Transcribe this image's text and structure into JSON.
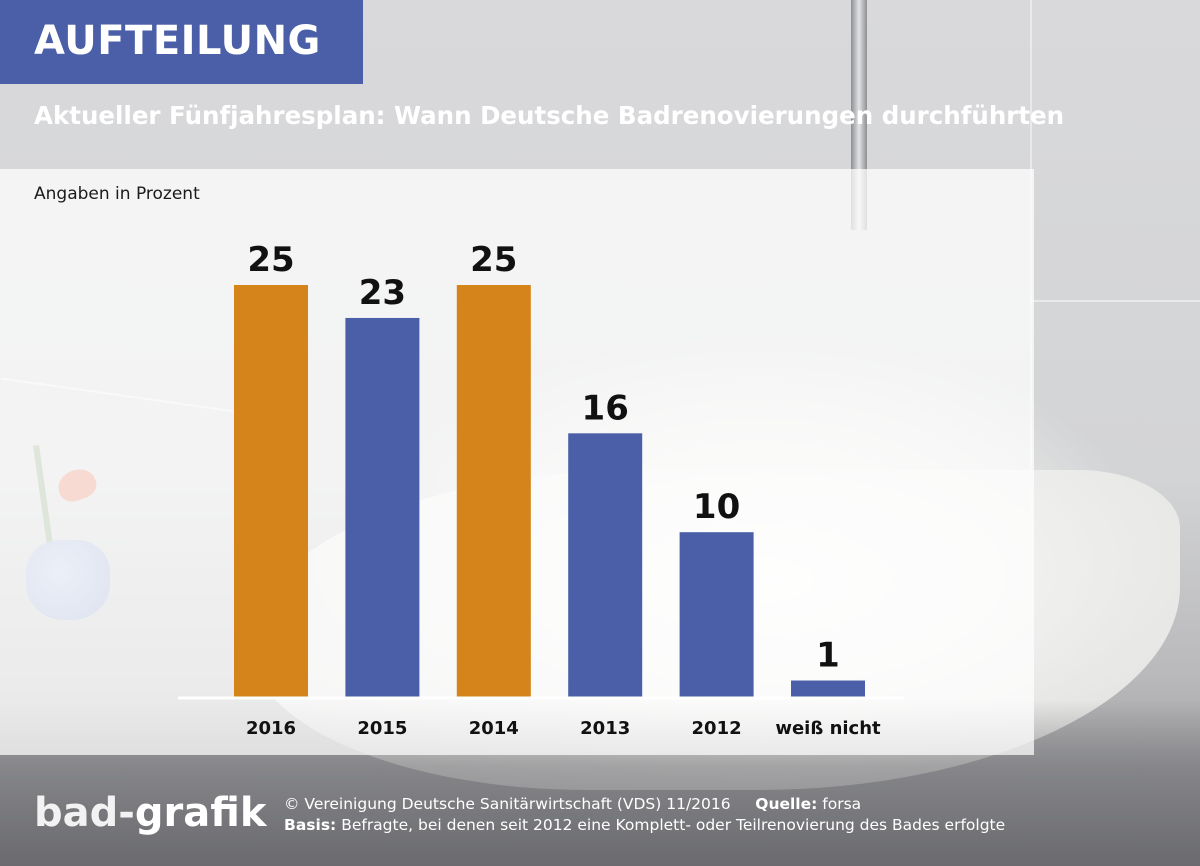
{
  "header": {
    "title": "AUFTEILUNG",
    "subtitle": "Aktueller Fünfjahresplan: Wann Deutsche Badrenovierungen durchführten"
  },
  "colors": {
    "title_bg": "#4a5fa8",
    "highlight_bar": "#d4841a",
    "default_bar": "#4a5fa8"
  },
  "chart_data": {
    "type": "bar",
    "unit_label": "Angaben in Prozent",
    "categories": [
      "2016",
      "2015",
      "2014",
      "2013",
      "2012",
      "weiß nicht"
    ],
    "values": [
      25,
      23,
      25,
      16,
      10,
      1
    ],
    "bar_colors": [
      "#d4841a",
      "#4a5fa8",
      "#d4841a",
      "#4a5fa8",
      "#4a5fa8",
      "#4a5fa8"
    ],
    "ylim": [
      0,
      25
    ],
    "grid": false,
    "data_labels": true
  },
  "footer": {
    "logo_bad": "bad",
    "logo_dash": "-",
    "logo_grafik": "grafik",
    "copyright": "© Vereinigung Deutsche Sanitärwirtschaft (VDS)  11/2016",
    "source_label": "Quelle:",
    "source_value": "forsa",
    "basis_label": "Basis:",
    "basis_value": "Befragte, bei denen seit 2012 eine Komplett- oder Teilrenovierung des Bades erfolgte"
  }
}
